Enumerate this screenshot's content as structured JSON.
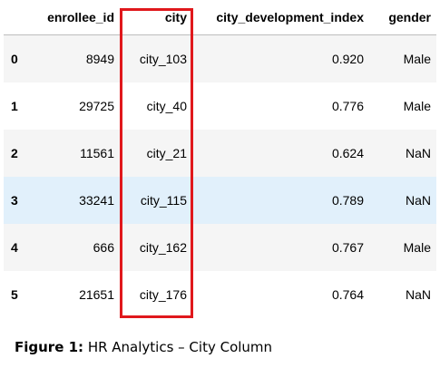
{
  "table": {
    "columns": [
      "",
      "enrollee_id",
      "city",
      "city_development_index",
      "gender"
    ],
    "rows": [
      {
        "index": "0",
        "enrollee_id": "8949",
        "city": "city_103",
        "city_development_index": "0.920",
        "gender": "Male"
      },
      {
        "index": "1",
        "enrollee_id": "29725",
        "city": "city_40",
        "city_development_index": "0.776",
        "gender": "Male"
      },
      {
        "index": "2",
        "enrollee_id": "11561",
        "city": "city_21",
        "city_development_index": "0.624",
        "gender": "NaN"
      },
      {
        "index": "3",
        "enrollee_id": "33241",
        "city": "city_115",
        "city_development_index": "0.789",
        "gender": "NaN"
      },
      {
        "index": "4",
        "enrollee_id": "666",
        "city": "city_162",
        "city_development_index": "0.767",
        "gender": "Male"
      },
      {
        "index": "5",
        "enrollee_id": "21651",
        "city": "city_176",
        "city_development_index": "0.764",
        "gender": "NaN"
      }
    ],
    "highlighted_row": 3,
    "highlighted_column": "city"
  },
  "caption": {
    "label": "Figure 1:",
    "text": " HR Analytics – City Column"
  },
  "colors": {
    "highlight_border": "#e0181c",
    "hover_row": "#e1f0fb",
    "striped_row": "#f5f5f5"
  }
}
